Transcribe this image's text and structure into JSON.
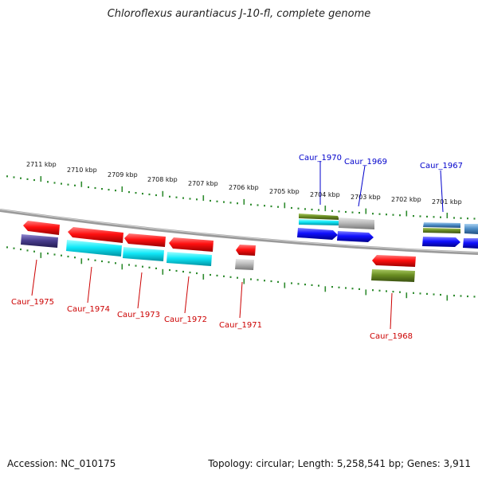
{
  "title": "Chloroflexus aurantiacus J-10-fl, complete genome",
  "scale_labels": [
    "2711 kbp",
    "2710 kbp",
    "2709 kbp",
    "2708 kbp",
    "2707 kbp",
    "2706 kbp",
    "2705 kbp",
    "2704 kbp",
    "2703 kbp",
    "2702 kbp",
    "2701 kbp"
  ],
  "genes_forward": [
    "Caur_1970",
    "Caur_1969",
    "Caur_1967"
  ],
  "genes_reverse": [
    "Caur_1975",
    "Caur_1974",
    "Caur_1973",
    "Caur_1972",
    "Caur_1971",
    "Caur_1968"
  ],
  "footer": {
    "accession": "Accession: NC_010175",
    "summary": "Topology: circular; Length: 5,258,541 bp; Genes: 3,911"
  },
  "colors": {
    "forward_label": "#0000cc",
    "reverse_label": "#cc0000",
    "tick": "#2e8b2e",
    "backbone": "#888888",
    "red": "#ee1111",
    "blue": "#1a1aee",
    "cyan": "#22e0f0",
    "olive": "#6b8e23",
    "gray": "#aaaaaa",
    "navy": "#4a3f8f",
    "steel": "#4f8fc8"
  }
}
